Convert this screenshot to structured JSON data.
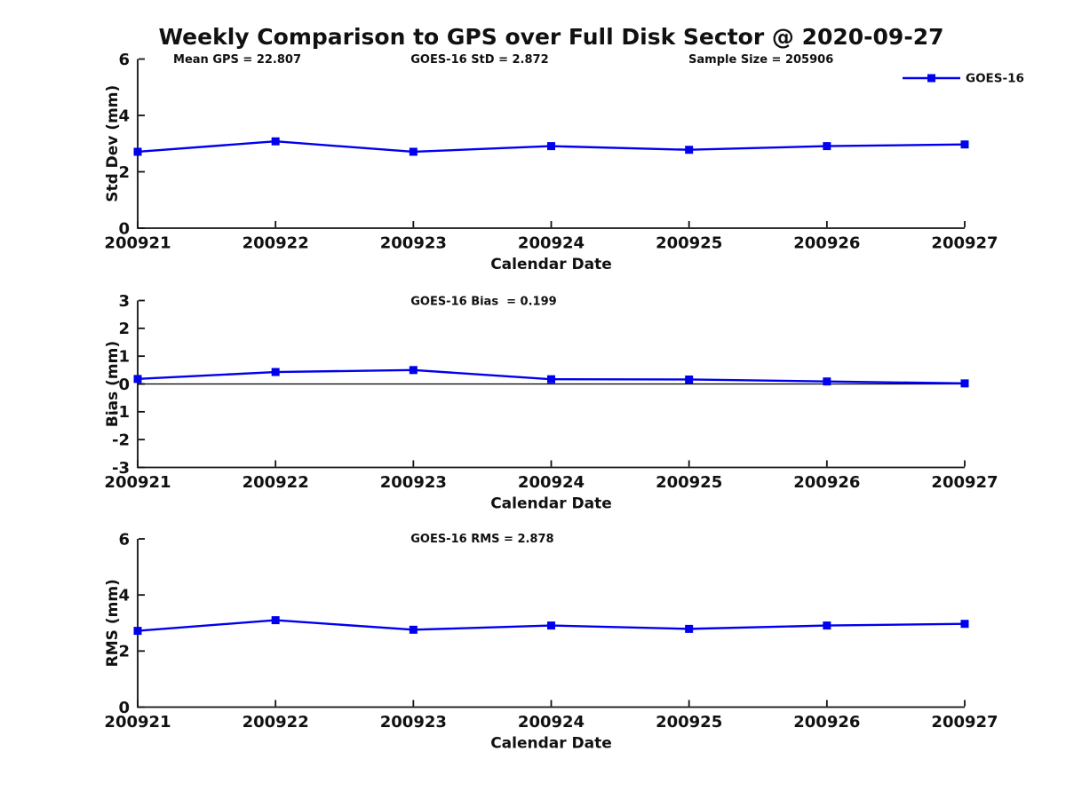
{
  "title": "Weekly Comparison to GPS over Full Disk Sector @ 2020-09-27",
  "legend": {
    "label": "GOES-16",
    "position": "top-right"
  },
  "colors": {
    "series": "#0000EE",
    "axis": "#111111",
    "text": "#111111",
    "zero_line": "#000000",
    "background": "#FFFFFF"
  },
  "chart_data": [
    {
      "id": "stddev",
      "type": "line",
      "annotations": [
        "Mean GPS = 22.807",
        "GOES-16 StD = 2.872",
        "Sample Size = 205906"
      ],
      "xlabel": "Calendar Date",
      "ylabel": "Std Dev (mm)",
      "categories": [
        "200921",
        "200922",
        "200923",
        "200924",
        "200925",
        "200926",
        "200927"
      ],
      "series": [
        {
          "name": "GOES-16",
          "values": [
            2.71,
            3.08,
            2.71,
            2.91,
            2.78,
            2.91,
            2.97
          ]
        }
      ],
      "ylim": [
        0,
        6
      ],
      "yticks": [
        0,
        2,
        4,
        6
      ],
      "grid": false,
      "zero_line": false,
      "legend": true,
      "legend_position": "top-right",
      "marker": "square"
    },
    {
      "id": "bias",
      "type": "line",
      "annotations": [
        "GOES-16 Bias  = 0.199"
      ],
      "xlabel": "Calendar Date",
      "ylabel": "Bias (mm)",
      "categories": [
        "200921",
        "200922",
        "200923",
        "200924",
        "200925",
        "200926",
        "200927"
      ],
      "series": [
        {
          "name": "GOES-16",
          "values": [
            0.18,
            0.43,
            0.5,
            0.17,
            0.16,
            0.09,
            0.02
          ]
        }
      ],
      "ylim": [
        -3,
        3
      ],
      "yticks": [
        -3,
        -2,
        -1,
        0,
        1,
        2,
        3
      ],
      "grid": false,
      "zero_line": true,
      "legend": false,
      "marker": "square"
    },
    {
      "id": "rms",
      "type": "line",
      "annotations": [
        "GOES-16 RMS = 2.878"
      ],
      "xlabel": "Calendar Date",
      "ylabel": "RMS (mm)",
      "categories": [
        "200921",
        "200922",
        "200923",
        "200924",
        "200925",
        "200926",
        "200927"
      ],
      "series": [
        {
          "name": "GOES-16",
          "values": [
            2.72,
            3.1,
            2.76,
            2.91,
            2.79,
            2.91,
            2.97
          ]
        }
      ],
      "ylim": [
        0,
        6
      ],
      "yticks": [
        0,
        2,
        4,
        6
      ],
      "grid": false,
      "zero_line": false,
      "legend": false,
      "marker": "square"
    }
  ]
}
